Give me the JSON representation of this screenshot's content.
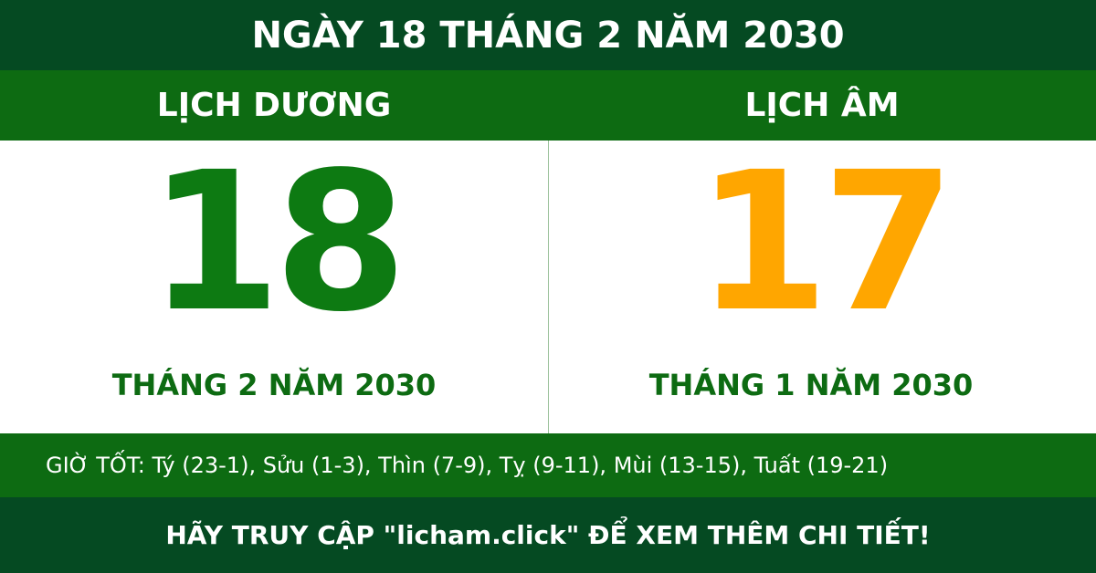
{
  "header": {
    "title": "NGÀY 18 THÁNG 2 NĂM 2030"
  },
  "solar": {
    "label": "LỊCH DƯƠNG",
    "day": "18",
    "month_year": "THÁNG 2 NĂM 2030"
  },
  "lunar": {
    "label": "LỊCH ÂM",
    "day": "17",
    "month_year": "THÁNG 1 NĂM 2030"
  },
  "good_hours": "GIỜ TỐT: Tý (23-1), Sửu (1-3), Thìn (7-9), Tỵ (9-11), Mùi (13-15), Tuất (19-21)",
  "footer": "HÃY TRUY CẬP \"licham.click\" ĐỂ XEM THÊM CHI TIẾT!"
}
